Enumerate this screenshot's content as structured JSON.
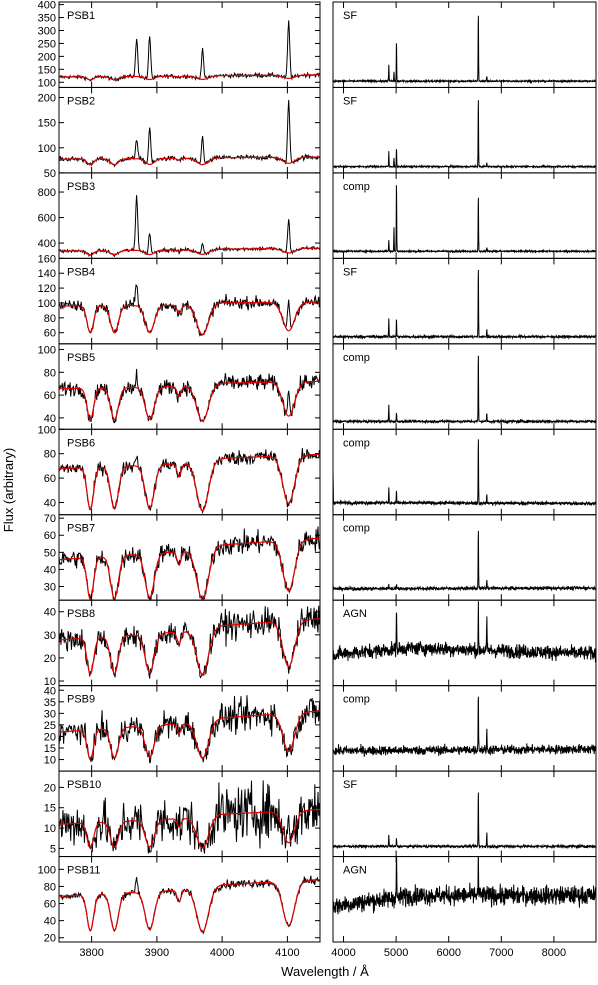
{
  "figure": {
    "xlabel": "Wavelength / Å",
    "ylabel": "Flux (arbitrary)"
  },
  "colors": {
    "spectrum": "#000000",
    "model": "#e00000",
    "frame": "#000000"
  },
  "chart_data": [
    {
      "type": "line",
      "column": "left",
      "xlim": [
        3750,
        4150
      ],
      "xticks": [
        3800,
        3900,
        4000,
        4100
      ],
      "lines_angstrom": {
        "H_delta": 4102,
        "H_epsilon": 3970,
        "H_zeta": 3889,
        "H_eta": 3835,
        "H_theta": 3798,
        "OII": 3727,
        "NeIII": 3869,
        "NeIII_b": 3968
      },
      "panels": [
        {
          "label": "PSB1",
          "ylim": [
            80,
            410
          ],
          "yticks": [
            100,
            150,
            200,
            250,
            300,
            350,
            400
          ],
          "continuum": 125,
          "slope": 0.03,
          "balmer_absorption": 0.1,
          "emission": [
            {
              "x": 3869,
              "peak": 270
            },
            {
              "x": 3889,
              "peak": 295
            },
            {
              "x": 3970,
              "peak": 245
            },
            {
              "x": 4102,
              "peak": 345
            }
          ],
          "noise": 0.03
        },
        {
          "label": "PSB2",
          "ylim": [
            50,
            220
          ],
          "yticks": [
            50,
            100,
            150,
            200
          ],
          "continuum": 80,
          "slope": 0.02,
          "balmer_absorption": 0.15,
          "emission": [
            {
              "x": 3869,
              "peak": 120
            },
            {
              "x": 3889,
              "peak": 155
            },
            {
              "x": 3970,
              "peak": 135
            },
            {
              "x": 4102,
              "peak": 205
            }
          ],
          "noise": 0.03
        },
        {
          "label": "PSB3",
          "ylim": [
            280,
            950
          ],
          "yticks": [
            400,
            600,
            800
          ],
          "continuum": 350,
          "slope": 0.03,
          "balmer_absorption": 0.1,
          "emission": [
            {
              "x": 3869,
              "peak": 780
            },
            {
              "x": 3889,
              "peak": 520
            },
            {
              "x": 3970,
              "peak": 440
            },
            {
              "x": 4102,
              "peak": 610
            }
          ],
          "noise": 0.02
        },
        {
          "label": "PSB4",
          "ylim": [
            45,
            160
          ],
          "yticks": [
            60,
            80,
            100,
            120,
            140,
            160
          ],
          "continuum": 100,
          "slope": 0.01,
          "balmer_absorption": 0.38,
          "emission": [
            {
              "x": 3869,
              "peak": 135
            },
            {
              "x": 4102,
              "peak": 140
            }
          ],
          "noise": 0.04
        },
        {
          "label": "PSB5",
          "ylim": [
            30,
            105
          ],
          "yticks": [
            40,
            60,
            80,
            100
          ],
          "continuum": 70,
          "slope": 0.03,
          "balmer_absorption": 0.42,
          "emission": [
            {
              "x": 3869,
              "peak": 82
            },
            {
              "x": 4102,
              "peak": 92
            }
          ],
          "noise": 0.05
        },
        {
          "label": "PSB6",
          "ylim": [
            30,
            100
          ],
          "yticks": [
            40,
            60,
            80,
            100
          ],
          "continuum": 75,
          "slope": 0.06,
          "balmer_absorption": 0.5,
          "emission": [
            {
              "x": 3869,
              "peak": 85
            }
          ],
          "noise": 0.04
        },
        {
          "label": "PSB7",
          "ylim": [
            22,
            72
          ],
          "yticks": [
            30,
            40,
            50,
            60,
            70
          ],
          "continuum": 53,
          "slope": 0.1,
          "balmer_absorption": 0.52,
          "emission": [],
          "noise": 0.06
        },
        {
          "label": "PSB8",
          "ylim": [
            8,
            45
          ],
          "yticks": [
            10,
            20,
            30,
            40
          ],
          "continuum": 33,
          "slope": 0.12,
          "balmer_absorption": 0.55,
          "emission": [],
          "noise": 0.09
        },
        {
          "label": "PSB9",
          "ylim": [
            5,
            42
          ],
          "yticks": [
            10,
            15,
            20,
            25,
            30,
            35,
            40
          ],
          "continuum": 27,
          "slope": 0.15,
          "balmer_absorption": 0.55,
          "emission": [],
          "noise": 0.12
        },
        {
          "label": "PSB10",
          "ylim": [
            3,
            24
          ],
          "yticks": [
            5,
            10,
            15,
            20
          ],
          "continuum": 13,
          "slope": 0.12,
          "balmer_absorption": 0.55,
          "emission": [
            {
              "x": 4102,
              "peak": 20
            }
          ],
          "noise": 0.25
        },
        {
          "label": "PSB11",
          "ylim": [
            15,
            115
          ],
          "yticks": [
            20,
            40,
            60,
            80,
            100
          ],
          "continuum": 80,
          "slope": 0.1,
          "balmer_absorption": 0.6,
          "emission": [
            {
              "x": 3869,
              "peak": 98
            }
          ],
          "noise": 0.03
        }
      ]
    },
    {
      "type": "line",
      "column": "right",
      "xlim": [
        3800,
        8800
      ],
      "xticks": [
        4000,
        5000,
        6000,
        7000,
        8000
      ],
      "lines_angstrom": {
        "OII": 3727,
        "Hbeta": 4861,
        "OIII_a": 4959,
        "OIII_b": 5007,
        "Halpha": 6563,
        "SII": 6724
      },
      "panels": [
        {
          "label": "SF",
          "continuum_level": 0.03,
          "continuum_slope": 0.0,
          "noise": 0.005,
          "lines": [
            {
              "x": 3727,
              "h": 0.1
            },
            {
              "x": 4861,
              "h": 0.22
            },
            {
              "x": 4959,
              "h": 0.12
            },
            {
              "x": 5007,
              "h": 0.55
            },
            {
              "x": 6563,
              "h": 0.97
            },
            {
              "x": 6724,
              "h": 0.07
            }
          ]
        },
        {
          "label": "SF",
          "continuum_level": 0.03,
          "continuum_slope": 0.0,
          "noise": 0.005,
          "lines": [
            {
              "x": 4861,
              "h": 0.2
            },
            {
              "x": 4959,
              "h": 0.12
            },
            {
              "x": 5007,
              "h": 0.25
            },
            {
              "x": 6563,
              "h": 0.98
            },
            {
              "x": 6724,
              "h": 0.05
            }
          ]
        },
        {
          "label": "comp",
          "continuum_level": 0.04,
          "continuum_slope": 0.0,
          "noise": 0.005,
          "lines": [
            {
              "x": 3727,
              "h": 0.08
            },
            {
              "x": 4861,
              "h": 0.15
            },
            {
              "x": 4959,
              "h": 0.32
            },
            {
              "x": 5007,
              "h": 0.97
            },
            {
              "x": 6563,
              "h": 0.78
            },
            {
              "x": 6724,
              "h": 0.05
            }
          ]
        },
        {
          "label": "SF",
          "continuum_level": 0.04,
          "continuum_slope": 0.0,
          "noise": 0.008,
          "lines": [
            {
              "x": 4861,
              "h": 0.25
            },
            {
              "x": 5007,
              "h": 0.25
            },
            {
              "x": 6563,
              "h": 0.97
            },
            {
              "x": 6724,
              "h": 0.1
            }
          ]
        },
        {
          "label": "comp",
          "continuum_level": 0.05,
          "continuum_slope": 0.0,
          "noise": 0.008,
          "lines": [
            {
              "x": 4861,
              "h": 0.22
            },
            {
              "x": 5007,
              "h": 0.12
            },
            {
              "x": 6563,
              "h": 0.95
            },
            {
              "x": 6724,
              "h": 0.12
            }
          ]
        },
        {
          "label": "comp",
          "continuum_level": 0.1,
          "continuum_slope": -0.02,
          "noise": 0.01,
          "lines": [
            {
              "x": 3800,
              "h": 0.38
            },
            {
              "x": 4861,
              "h": 0.2
            },
            {
              "x": 5007,
              "h": 0.18
            },
            {
              "x": 6563,
              "h": 0.92
            },
            {
              "x": 6724,
              "h": 0.1
            }
          ]
        },
        {
          "label": "comp",
          "continuum_level": 0.1,
          "continuum_slope": 0.02,
          "noise": 0.01,
          "lines": [
            {
              "x": 4861,
              "h": 0.08
            },
            {
              "x": 5007,
              "h": 0.06
            },
            {
              "x": 6563,
              "h": 0.85
            },
            {
              "x": 6724,
              "h": 0.12
            }
          ]
        },
        {
          "label": "AGN",
          "continuum_level": 0.42,
          "continuum_slope": -0.05,
          "noise": 0.045,
          "lines": [
            {
              "x": 5007,
              "h": 0.62
            },
            {
              "x": 6563,
              "h": 0.6
            },
            {
              "x": 6724,
              "h": 0.45
            }
          ]
        },
        {
          "label": "comp",
          "continuum_level": 0.22,
          "continuum_slope": 0.02,
          "noise": 0.03,
          "lines": [
            {
              "x": 6563,
              "h": 0.85
            },
            {
              "x": 6724,
              "h": 0.25
            }
          ]
        },
        {
          "label": "SF",
          "continuum_level": 0.08,
          "continuum_slope": 0.0,
          "noise": 0.008,
          "lines": [
            {
              "x": 4861,
              "h": 0.15
            },
            {
              "x": 5007,
              "h": 0.12
            },
            {
              "x": 6563,
              "h": 0.78
            },
            {
              "x": 6724,
              "h": 0.18
            }
          ]
        },
        {
          "label": "AGN",
          "continuum_level": 0.55,
          "continuum_slope": 0.0,
          "noise": 0.06,
          "lines": [
            {
              "x": 5007,
              "h": 0.8
            },
            {
              "x": 6563,
              "h": 0.68
            }
          ]
        }
      ]
    }
  ]
}
